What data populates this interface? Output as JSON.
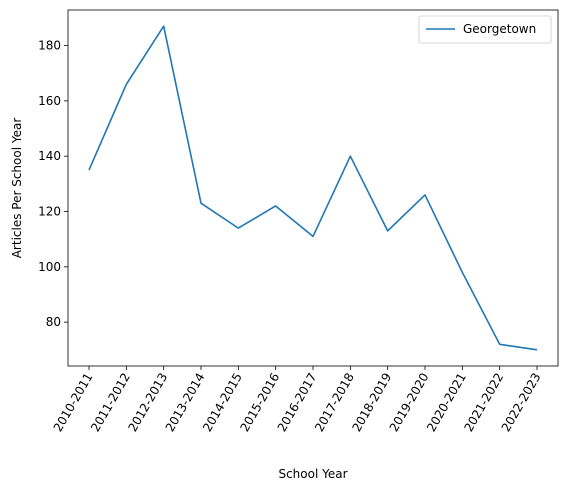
{
  "chart_data": {
    "type": "line",
    "title": "",
    "xlabel": "School Year",
    "ylabel": "Articles Per School Year",
    "categories": [
      "2010-2011",
      "2011-2012",
      "2012-2013",
      "2013-2014",
      "2014-2015",
      "2015-2016",
      "2016-2017",
      "2017-2018",
      "2018-2019",
      "2019-2020",
      "2020-2021",
      "2021-2022",
      "2022-2023"
    ],
    "series": [
      {
        "name": "Georgetown",
        "color": "#1f77b4",
        "values": [
          135,
          166,
          187,
          123,
          114,
          122,
          111,
          140,
          113,
          126,
          98,
          72,
          70
        ]
      }
    ],
    "yticks": [
      80,
      100,
      120,
      140,
      160,
      180
    ],
    "ylim": [
      64.15,
      192.85
    ],
    "grid": false,
    "legend": "top-right"
  }
}
